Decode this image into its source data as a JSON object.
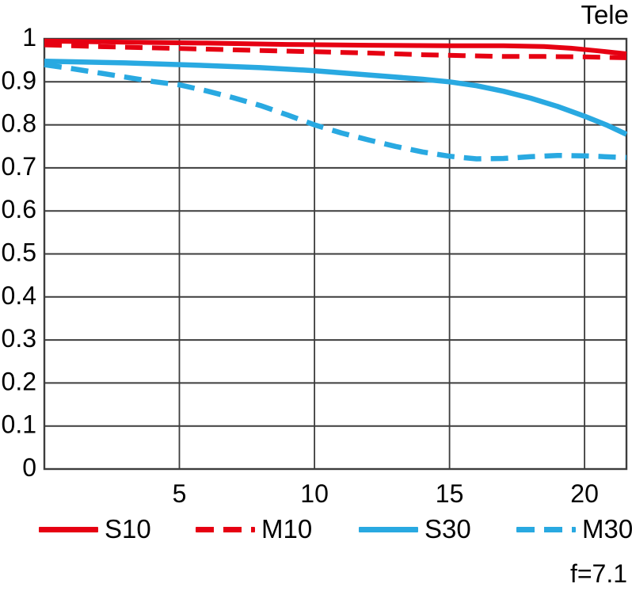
{
  "header": {
    "corner_label": "Tele"
  },
  "footer": {
    "aperture_label": "f=7.1"
  },
  "legend": {
    "items": [
      {
        "label": "S10",
        "color": "#e60012",
        "style": "solid"
      },
      {
        "label": "M10",
        "color": "#e60012",
        "style": "dashed"
      },
      {
        "label": "S30",
        "color": "#29a9e1",
        "style": "solid"
      },
      {
        "label": "M30",
        "color": "#29a9e1",
        "style": "dashed"
      }
    ]
  },
  "chart_data": {
    "type": "line",
    "title": "Tele",
    "annotation": "f=7.1",
    "xlabel": "",
    "ylabel": "",
    "xlim": [
      0,
      21.55
    ],
    "ylim": [
      0,
      1
    ],
    "grid": true,
    "legend_position": "bottom",
    "axis_color": "#3d3d3d",
    "x_ticks": [
      {
        "v": 5,
        "label": "5"
      },
      {
        "v": 10,
        "label": "10"
      },
      {
        "v": 15,
        "label": "15"
      },
      {
        "v": 20,
        "label": "20"
      }
    ],
    "y_ticks": [
      {
        "v": 1.0,
        "label": "1"
      },
      {
        "v": 0.9,
        "label": "0.9"
      },
      {
        "v": 0.8,
        "label": "0.8"
      },
      {
        "v": 0.7,
        "label": "0.7"
      },
      {
        "v": 0.6,
        "label": "0.6"
      },
      {
        "v": 0.5,
        "label": "0.5"
      },
      {
        "v": 0.4,
        "label": "0.4"
      },
      {
        "v": 0.3,
        "label": "0.3"
      },
      {
        "v": 0.2,
        "label": "0.2"
      },
      {
        "v": 0.1,
        "label": "0.1"
      },
      {
        "v": 0.0,
        "label": "0"
      }
    ],
    "series": [
      {
        "name": "S10",
        "color": "#e60012",
        "style": "solid",
        "width": 6,
        "points": [
          [
            0,
            0.995
          ],
          [
            3,
            0.992
          ],
          [
            6,
            0.99
          ],
          [
            9,
            0.987
          ],
          [
            12,
            0.985
          ],
          [
            15,
            0.984
          ],
          [
            17,
            0.984
          ],
          [
            18.5,
            0.982
          ],
          [
            19.5,
            0.978
          ],
          [
            20.5,
            0.972
          ],
          [
            21.55,
            0.965
          ]
        ]
      },
      {
        "name": "M10",
        "color": "#e60012",
        "style": "dashed",
        "width": 6,
        "points": [
          [
            0,
            0.986
          ],
          [
            2,
            0.982
          ],
          [
            4,
            0.979
          ],
          [
            6,
            0.976
          ],
          [
            8,
            0.973
          ],
          [
            10,
            0.97
          ],
          [
            12,
            0.967
          ],
          [
            14,
            0.963
          ],
          [
            15.5,
            0.961
          ],
          [
            17,
            0.959
          ],
          [
            18.5,
            0.959
          ],
          [
            20,
            0.958
          ],
          [
            21.55,
            0.956
          ]
        ]
      },
      {
        "name": "S30",
        "color": "#29a9e1",
        "style": "solid",
        "width": 6.5,
        "points": [
          [
            0,
            0.948
          ],
          [
            3,
            0.944
          ],
          [
            6,
            0.938
          ],
          [
            8,
            0.933
          ],
          [
            10,
            0.926
          ],
          [
            12,
            0.916
          ],
          [
            14,
            0.906
          ],
          [
            15,
            0.9
          ],
          [
            16,
            0.891
          ],
          [
            17,
            0.878
          ],
          [
            18,
            0.862
          ],
          [
            19,
            0.843
          ],
          [
            20,
            0.82
          ],
          [
            20.8,
            0.8
          ],
          [
            21.55,
            0.778
          ]
        ]
      },
      {
        "name": "M30",
        "color": "#29a9e1",
        "style": "dashed",
        "width": 6.5,
        "points": [
          [
            0,
            0.94
          ],
          [
            1,
            0.931
          ],
          [
            2,
            0.921
          ],
          [
            3,
            0.911
          ],
          [
            4,
            0.901
          ],
          [
            5,
            0.893
          ],
          [
            6,
            0.879
          ],
          [
            7,
            0.863
          ],
          [
            8,
            0.845
          ],
          [
            9,
            0.823
          ],
          [
            10,
            0.8
          ],
          [
            11,
            0.781
          ],
          [
            12,
            0.765
          ],
          [
            13,
            0.75
          ],
          [
            14,
            0.737
          ],
          [
            15,
            0.727
          ],
          [
            16,
            0.721
          ],
          [
            17,
            0.722
          ],
          [
            18,
            0.726
          ],
          [
            19,
            0.729
          ],
          [
            20,
            0.728
          ],
          [
            21.55,
            0.724
          ]
        ]
      }
    ]
  }
}
